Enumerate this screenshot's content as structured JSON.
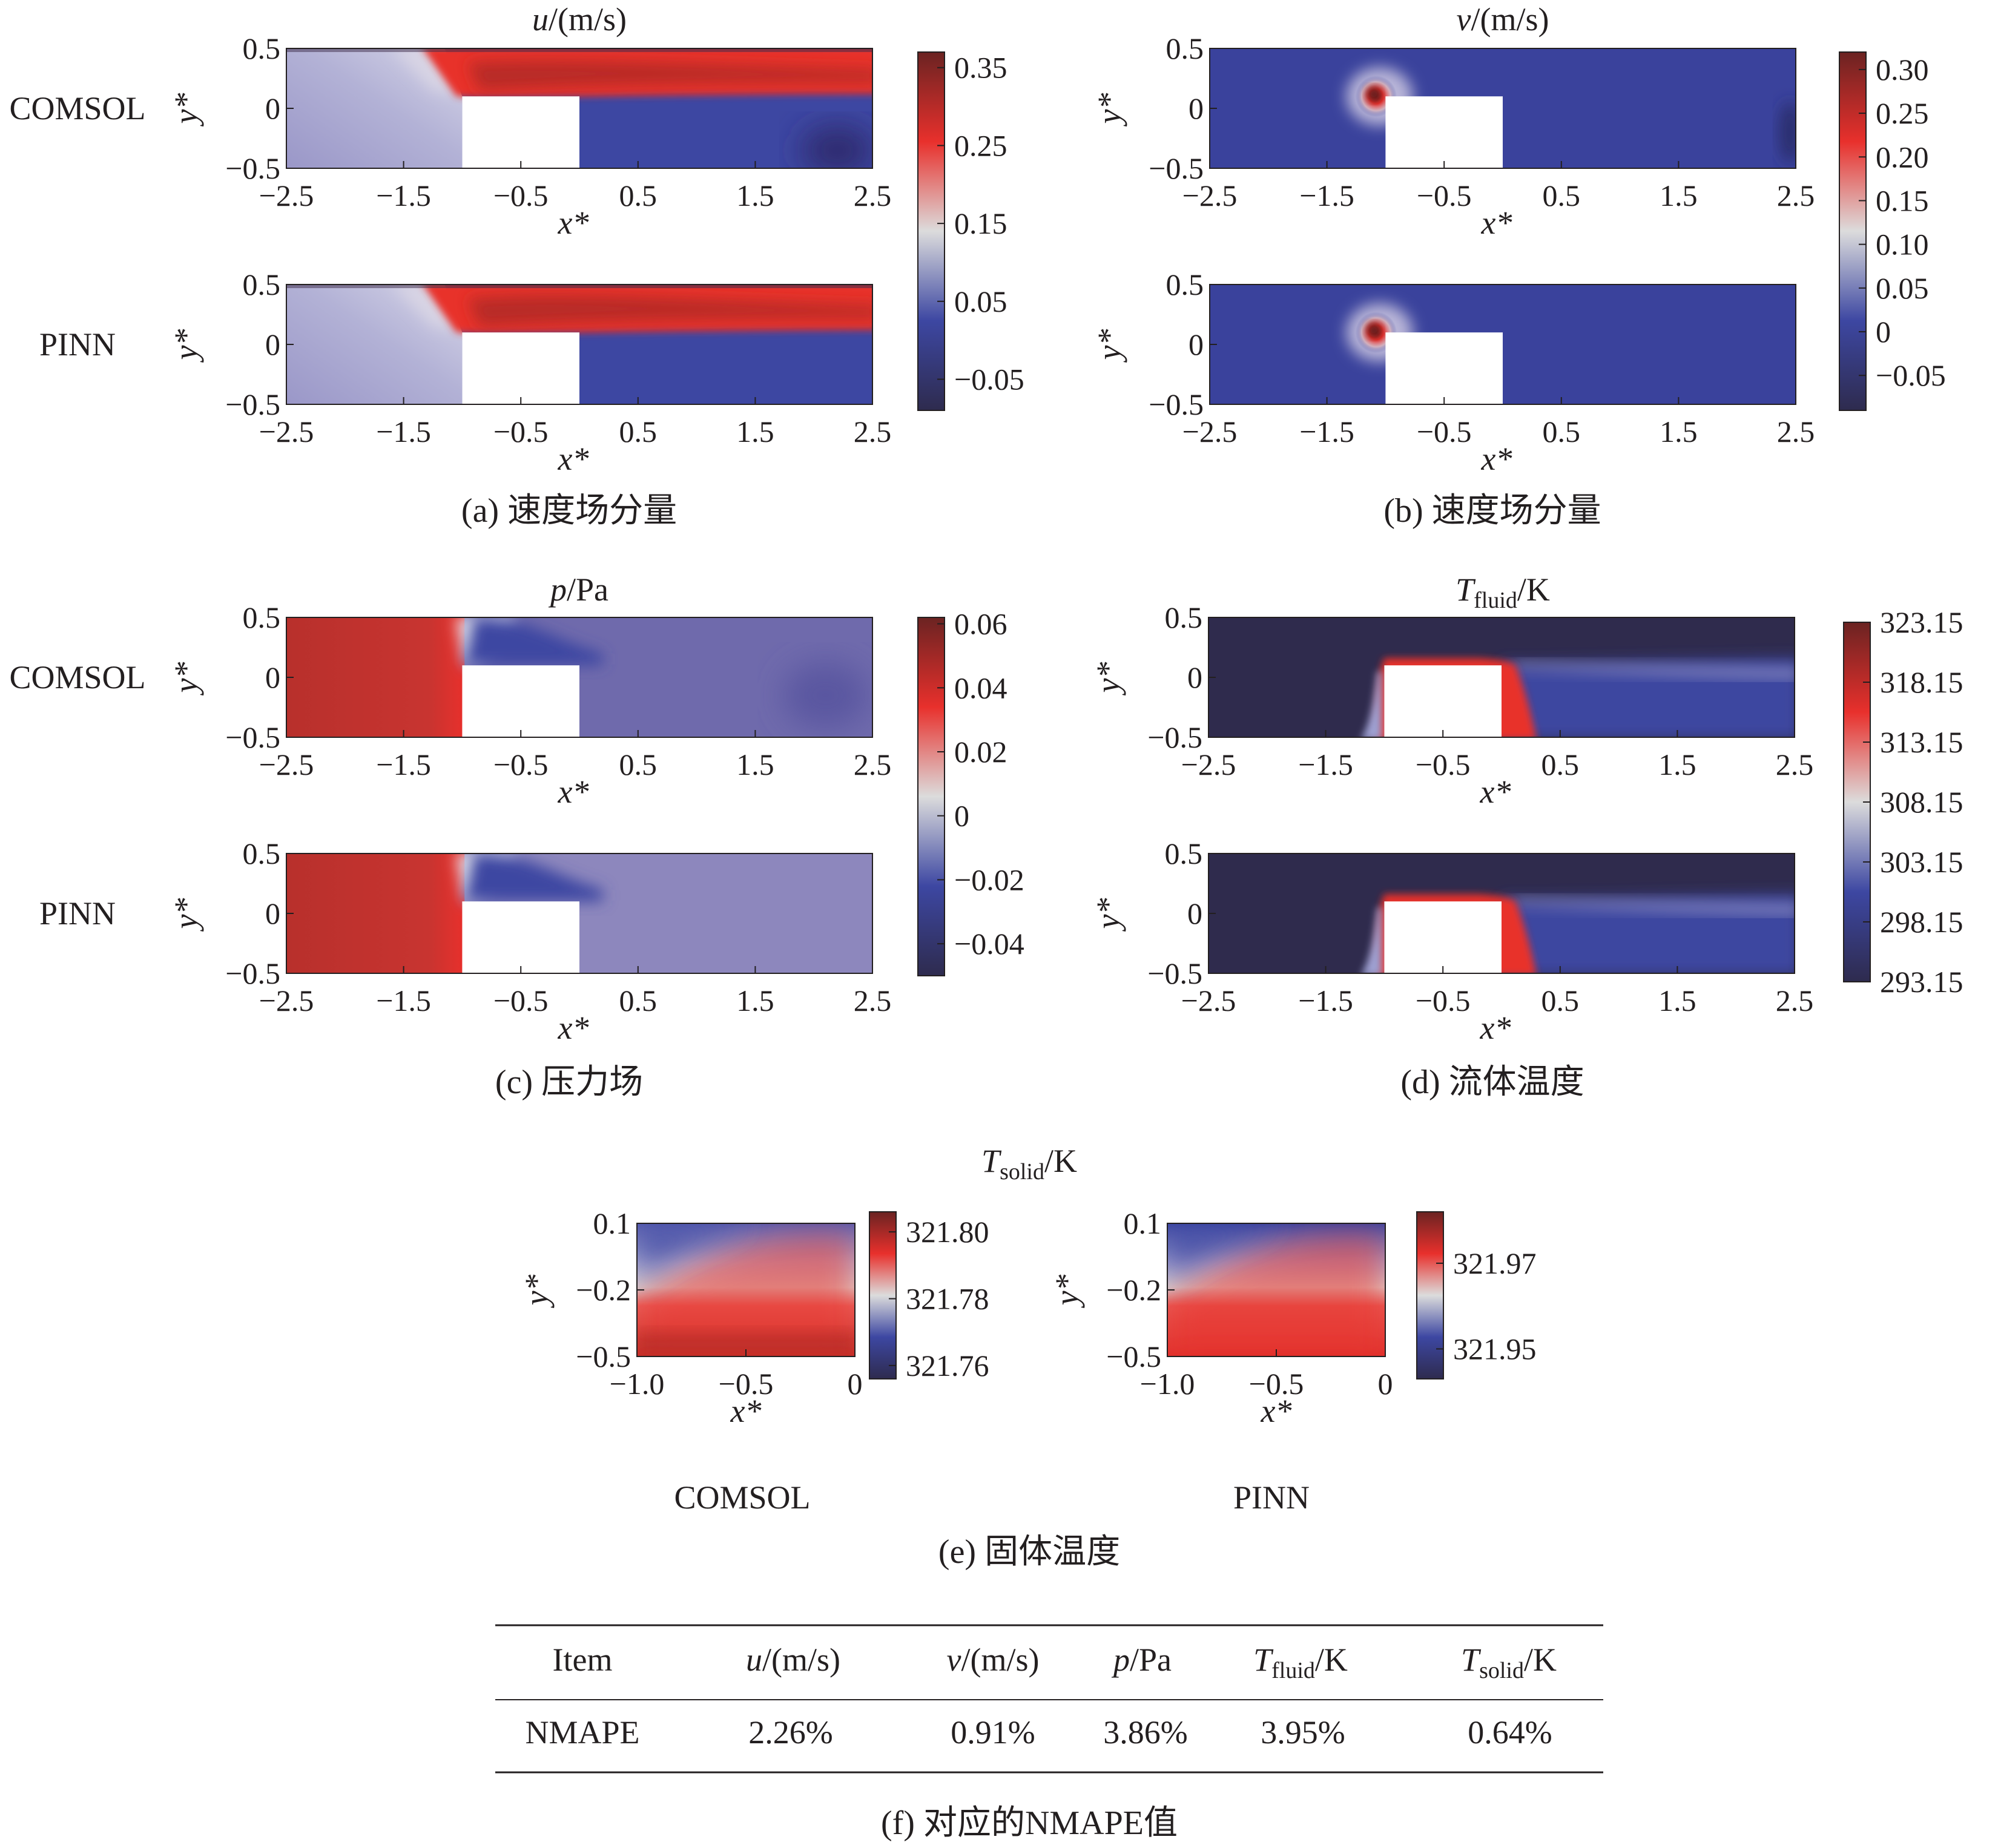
{
  "colors": {
    "low": "#2e2b4e",
    "blue": "#3d47a2",
    "lavender": "#9a97c8",
    "mid": "#dcdcdc",
    "red": "#e8302c",
    "high": "#6b2322",
    "box": "#ffffff",
    "frame": "#231f20"
  },
  "chart_data": [
    {
      "panel": "a",
      "type": "heatmap",
      "quantity": "u",
      "title": "u/(m/s)",
      "caption": "(a) 速度场分量",
      "xlabel": "x*",
      "ylabel": "y*",
      "xlim": [
        -2.5,
        2.5
      ],
      "ylim": [
        -0.5,
        0.5
      ],
      "xticks": [
        "−2.5",
        "−1.5",
        "−0.5",
        "0.5",
        "1.5",
        "2.5"
      ],
      "yticks": [
        "0.5",
        "0",
        "−0.5"
      ],
      "rows": [
        "COMSOL",
        "PINN"
      ],
      "solid_block": {
        "x": [
          -1.0,
          0.0
        ],
        "y": [
          -0.5,
          0.1
        ]
      },
      "colorbar": {
        "min": -0.09,
        "max": 0.37,
        "ticks": [
          0.35,
          0.25,
          0.15,
          0.05,
          -0.05
        ],
        "labels": [
          "0.35",
          "0.25",
          "0.15",
          "0.05",
          "−0.05"
        ]
      }
    },
    {
      "panel": "b",
      "type": "heatmap",
      "quantity": "v",
      "title": "v/(m/s)",
      "caption": "(b) 速度场分量",
      "xlabel": "x*",
      "ylabel": "y*",
      "xlim": [
        -2.5,
        2.5
      ],
      "ylim": [
        -0.5,
        0.5
      ],
      "xticks": [
        "−2.5",
        "−1.5",
        "−0.5",
        "0.5",
        "1.5",
        "2.5"
      ],
      "yticks": [
        "0.5",
        "0",
        "−0.5"
      ],
      "rows": [
        "",
        ""
      ],
      "solid_block": {
        "x": [
          -1.0,
          0.0
        ],
        "y": [
          -0.5,
          0.1
        ]
      },
      "colorbar": {
        "min": -0.09,
        "max": 0.32,
        "ticks": [
          0.3,
          0.25,
          0.2,
          0.15,
          0.1,
          0.05,
          0,
          -0.05
        ],
        "labels": [
          "0.30",
          "0.25",
          "0.20",
          "0.15",
          "0.10",
          "0.05",
          "0",
          "−0.05"
        ]
      }
    },
    {
      "panel": "c",
      "type": "heatmap",
      "quantity": "p",
      "title": "p/Pa",
      "caption": "(c) 压力场",
      "xlabel": "x*",
      "ylabel": "y*",
      "xlim": [
        -2.5,
        2.5
      ],
      "ylim": [
        -0.5,
        0.5
      ],
      "xticks": [
        "−2.5",
        "−1.5",
        "−0.5",
        "0.5",
        "1.5",
        "2.5"
      ],
      "yticks": [
        "0.5",
        "0",
        "−0.5"
      ],
      "rows": [
        "COMSOL",
        "PINN"
      ],
      "solid_block": {
        "x": [
          -1.0,
          0.0
        ],
        "y": [
          -0.5,
          0.1
        ]
      },
      "colorbar": {
        "min": -0.05,
        "max": 0.062,
        "ticks": [
          0.06,
          0.04,
          0.02,
          0,
          -0.02,
          -0.04
        ],
        "labels": [
          "0.06",
          "0.04",
          "0.02",
          "0",
          "−0.02",
          "−0.04"
        ]
      }
    },
    {
      "panel": "d",
      "type": "heatmap",
      "quantity": "T_fluid",
      "title_main": "T",
      "title_sub": "fluid",
      "title_unit": "/K",
      "caption": "(d) 流体温度",
      "xlabel": "x*",
      "ylabel": "y*",
      "xlim": [
        -2.5,
        2.5
      ],
      "ylim": [
        -0.5,
        0.5
      ],
      "xticks": [
        "−2.5",
        "−1.5",
        "−0.5",
        "0.5",
        "1.5",
        "2.5"
      ],
      "yticks": [
        "0.5",
        "0",
        "−0.5"
      ],
      "rows": [
        "",
        ""
      ],
      "solid_block": {
        "x": [
          -1.0,
          0.0
        ],
        "y": [
          -0.5,
          0.1
        ]
      },
      "colorbar": {
        "min": 293.15,
        "max": 323.15,
        "ticks": [
          323.15,
          318.15,
          313.15,
          308.15,
          303.15,
          298.15,
          293.15
        ],
        "labels": [
          "323.15",
          "318.15",
          "313.15",
          "308.15",
          "303.15",
          "298.15",
          "293.15"
        ]
      }
    },
    {
      "panel": "e",
      "type": "heatmap",
      "quantity": "T_solid",
      "title_main": "T",
      "title_sub": "solid",
      "title_unit": "/K",
      "caption": "(e) 固体温度",
      "xlabel": "x*",
      "ylabel": "y*",
      "xlim": [
        -1.0,
        0.0
      ],
      "ylim": [
        -0.5,
        0.1
      ],
      "xticks": [
        "−1.0",
        "−0.5",
        "0"
      ],
      "yticks": [
        "0.1",
        "−0.2",
        "−0.5"
      ],
      "subplots": [
        {
          "label": "COMSOL",
          "colorbar": {
            "min": 321.756,
            "max": 321.806,
            "ticks": [
              321.8,
              321.78,
              321.76
            ],
            "labels": [
              "321.80",
              "321.78",
              "321.76"
            ]
          }
        },
        {
          "label": "PINN",
          "colorbar": {
            "min": 321.943,
            "max": 321.982,
            "ticks": [
              321.97,
              321.95
            ],
            "labels": [
              "321.97",
              "321.95"
            ]
          }
        }
      ]
    },
    {
      "panel": "f",
      "type": "table",
      "caption": "(f) 对应的NMAPE值",
      "header": {
        "item": "Item",
        "u": "u/(m/s)",
        "v": "v/(m/s)",
        "p": "p/Pa",
        "tf_main": "T",
        "tf_sub": "fluid",
        "tf_unit": "/K",
        "ts_main": "T",
        "ts_sub": "solid",
        "ts_unit": "/K"
      },
      "row": {
        "label": "NMAPE",
        "values": [
          "2.26%",
          "0.91%",
          "3.86%",
          "3.95%",
          "0.64%"
        ]
      }
    }
  ]
}
